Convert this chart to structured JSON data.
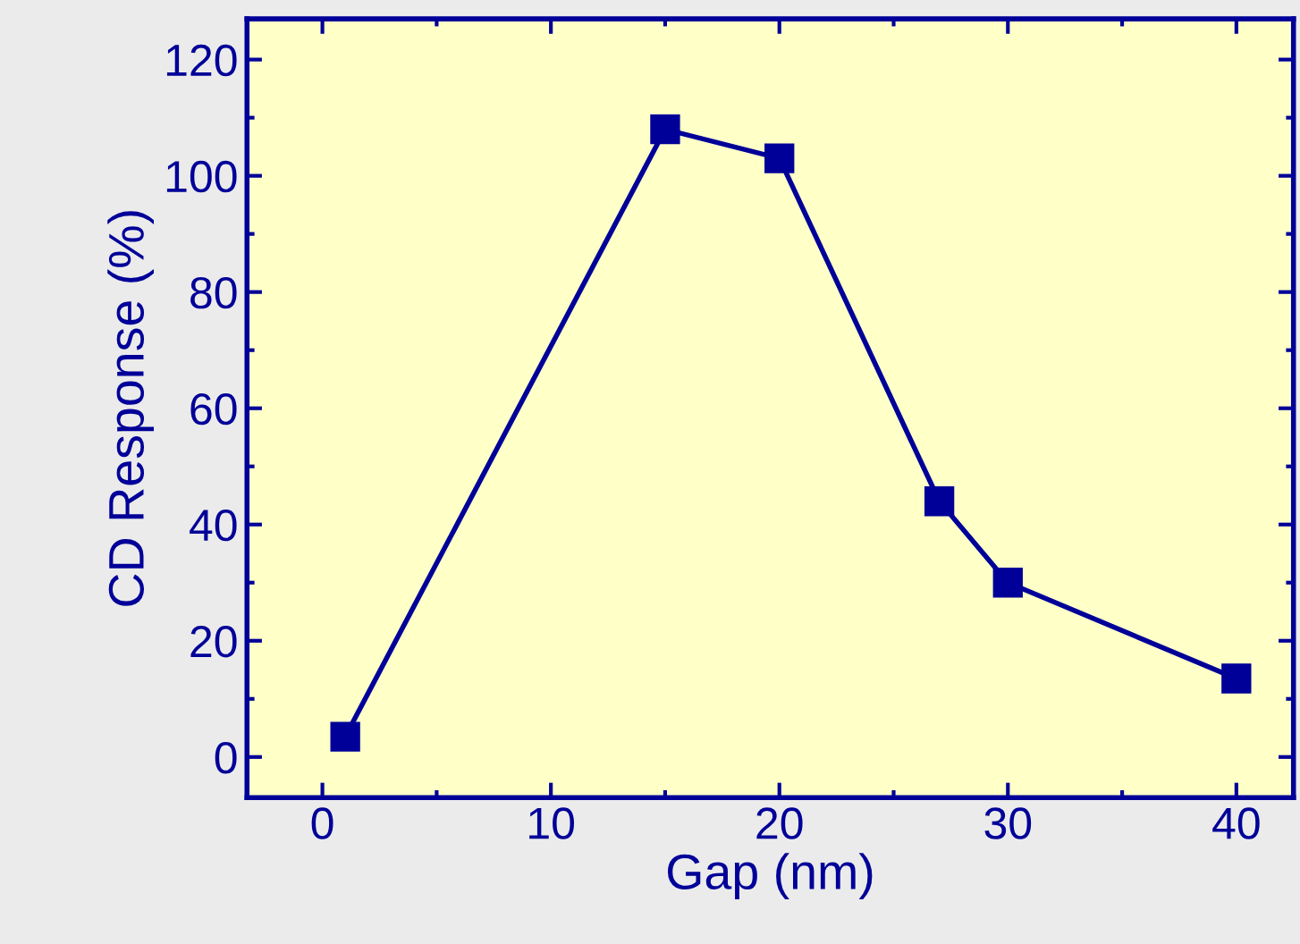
{
  "chart_data": {
    "type": "line",
    "xlabel": "Gap (nm)",
    "ylabel": "CD Response (%)",
    "x": [
      1,
      15,
      20,
      27,
      30,
      40
    ],
    "series": [
      {
        "color": "#000099",
        "values": [
          3.5,
          108,
          103,
          44,
          30,
          13.5
        ]
      }
    ],
    "xlim": [
      -3.3,
      42.5
    ],
    "ylim": [
      -7,
      127
    ],
    "xticks": [
      0,
      10,
      20,
      30,
      40
    ],
    "yticks": [
      0,
      20,
      40,
      60,
      80,
      100,
      120
    ],
    "marker": "square",
    "line_style": "solid",
    "grid": false,
    "legend": false
  }
}
